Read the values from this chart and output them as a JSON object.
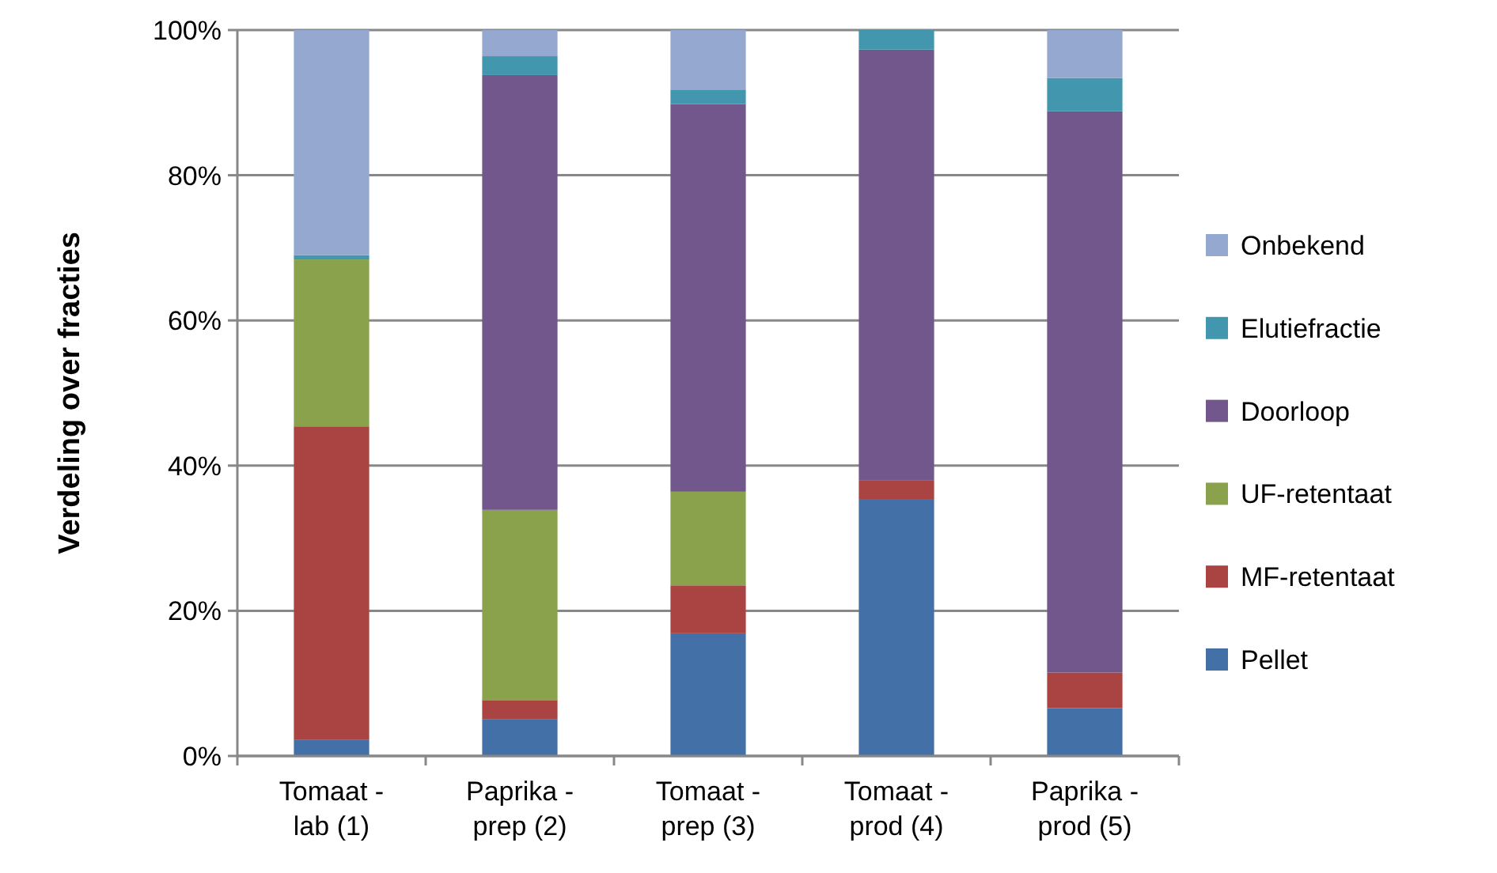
{
  "chart_data": {
    "type": "bar",
    "stacked": true,
    "ylabel": "Verdeling over fracties",
    "categories": [
      "Tomaat - lab (1)",
      "Paprika - prep (2)",
      "Tomaat - prep (3)",
      "Tomaat - prod (4)",
      "Paprika - prod (5)"
    ],
    "series": [
      {
        "name": "Pellet",
        "color": "#4470a8",
        "values": [
          2.2,
          5.1,
          16.9,
          35.4,
          6.6
        ]
      },
      {
        "name": "MF-retentaat",
        "color": "#a94442",
        "values": [
          43.2,
          2.6,
          6.6,
          2.6,
          4.9
        ]
      },
      {
        "name": "UF-retentaat",
        "color": "#89a24b",
        "values": [
          23.0,
          26.2,
          12.9,
          0,
          0
        ]
      },
      {
        "name": "Doorloop",
        "color": "#71578c",
        "values": [
          0,
          59.9,
          53.4,
          59.3,
          77.3
        ]
      },
      {
        "name": "Elutiefractie",
        "color": "#4296ad",
        "values": [
          0.6,
          2.6,
          2.0,
          2.7,
          4.6
        ]
      },
      {
        "name": "Onbekend",
        "color": "#94a8d0",
        "values": [
          31.0,
          3.6,
          8.2,
          0,
          6.6
        ]
      }
    ],
    "ylim": [
      0,
      100
    ],
    "yticks": [
      {
        "value": 0,
        "label": "0%"
      },
      {
        "value": 20,
        "label": "20%"
      },
      {
        "value": 40,
        "label": "40%"
      },
      {
        "value": 60,
        "label": "60%"
      },
      {
        "value": 80,
        "label": "80%"
      },
      {
        "value": 100,
        "label": "100%"
      }
    ],
    "grid": "y",
    "legend": "right"
  }
}
